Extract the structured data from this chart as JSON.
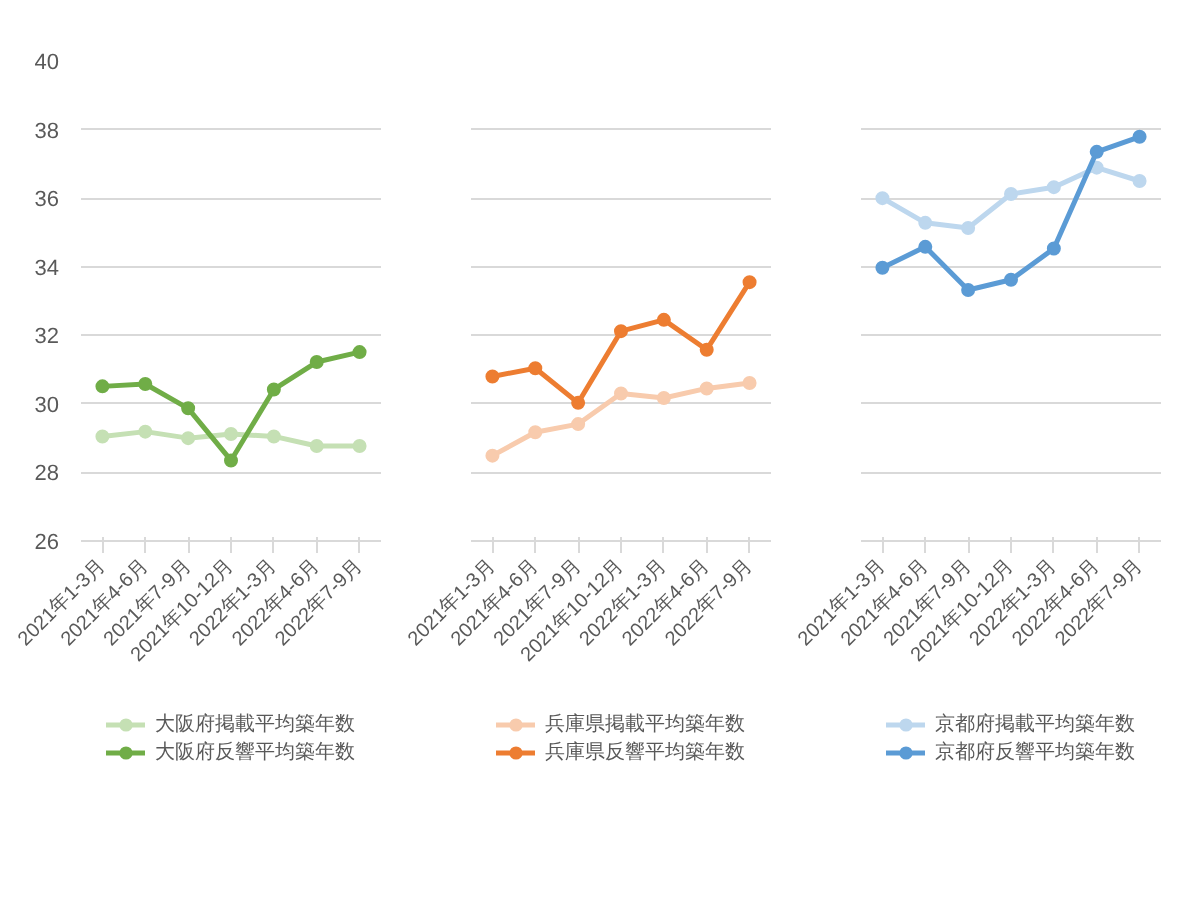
{
  "chart_data": [
    {
      "type": "line",
      "categories": [
        "2021年1-3月",
        "2021年4-6月",
        "2021年7-9月",
        "2021年10-12月",
        "2022年1-3月",
        "2022年4-6月",
        "2022年7-9月"
      ],
      "ylim": [
        26,
        40
      ],
      "yticks": [
        26,
        28,
        30,
        32,
        34,
        36,
        38,
        40
      ],
      "grid": "y",
      "legend": "bottom",
      "marker": "circle",
      "series": [
        {
          "name": "大阪府掲載平均築年数",
          "color": "#c5e0b4",
          "values": [
            29.05,
            29.19,
            29.0,
            29.12,
            29.05,
            28.77,
            28.77
          ]
        },
        {
          "name": "大阪府反響平均築年数",
          "color": "#70ad47",
          "values": [
            30.51,
            30.58,
            29.87,
            28.35,
            30.42,
            31.22,
            31.51
          ]
        }
      ]
    },
    {
      "type": "line",
      "categories": [
        "2021年1-3月",
        "2021年4-6月",
        "2021年7-9月",
        "2021年10-12月",
        "2022年1-3月",
        "2022年4-6月",
        "2022年7-9月"
      ],
      "ylim": [
        26,
        40
      ],
      "yticks": [
        26,
        28,
        30,
        32,
        34,
        36,
        38,
        40
      ],
      "grid": "y",
      "legend": "bottom",
      "marker": "circle",
      "tick_labels": "x",
      "series": [
        {
          "name": "兵庫県掲載平均築年数",
          "color": "#f8cbad",
          "values": [
            28.49,
            29.17,
            29.41,
            30.3,
            30.17,
            30.45,
            30.61
          ]
        },
        {
          "name": "兵庫県反響平均築年数",
          "color": "#ed7d31",
          "values": [
            30.8,
            31.04,
            30.03,
            32.12,
            32.45,
            31.58,
            33.55
          ]
        }
      ]
    },
    {
      "type": "line",
      "categories": [
        "2021年1-3月",
        "2021年4-6月",
        "2021年7-9月",
        "2021年10-12月",
        "2022年1-3月",
        "2022年4-6月",
        "2022年7-9月"
      ],
      "ylim": [
        26,
        40
      ],
      "yticks": [
        26,
        28,
        30,
        32,
        34,
        36,
        38,
        40
      ],
      "grid": "y",
      "legend": "bottom",
      "marker": "circle",
      "tick_labels": "x",
      "series": [
        {
          "name": "京都府掲載平均築年数",
          "color": "#bdd7ee",
          "values": [
            36.0,
            35.28,
            35.13,
            36.12,
            36.32,
            36.89,
            36.5
          ]
        },
        {
          "name": "京都府反響平均築年数",
          "color": "#5b9bd5",
          "values": [
            33.97,
            34.58,
            33.32,
            33.62,
            34.53,
            37.35,
            37.79
          ]
        }
      ]
    }
  ]
}
